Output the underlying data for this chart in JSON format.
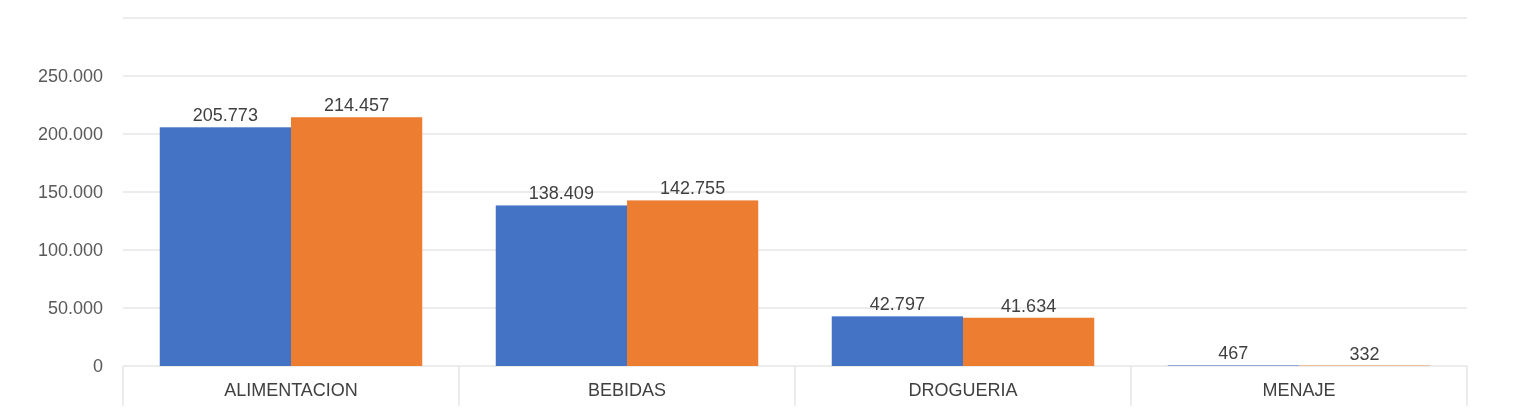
{
  "chart_data": {
    "type": "bar",
    "categories": [
      "ALIMENTACION",
      "BEBIDAS",
      "DROGUERIA",
      "MENAJE"
    ],
    "series": [
      {
        "color": "#4472c4",
        "values": [
          205773,
          138409,
          42797,
          467
        ],
        "value_labels": [
          "205.773",
          "138.409",
          "42.797",
          "467"
        ]
      },
      {
        "color": "#ed7d31",
        "values": [
          214457,
          142755,
          41634,
          332
        ],
        "value_labels": [
          "214.457",
          "142.755",
          "41.634",
          "332"
        ]
      }
    ],
    "ylim": [
      0,
      300000
    ],
    "yticks": [
      {
        "value": 0,
        "label": "0"
      },
      {
        "value": 50000,
        "label": "50.000"
      },
      {
        "value": 100000,
        "label": "100.000"
      },
      {
        "value": 150000,
        "label": "150.000"
      },
      {
        "value": 200000,
        "label": "200.000"
      },
      {
        "value": 250000,
        "label": "250.000"
      },
      {
        "value": 300000,
        "label": null
      }
    ],
    "grid": "y"
  }
}
